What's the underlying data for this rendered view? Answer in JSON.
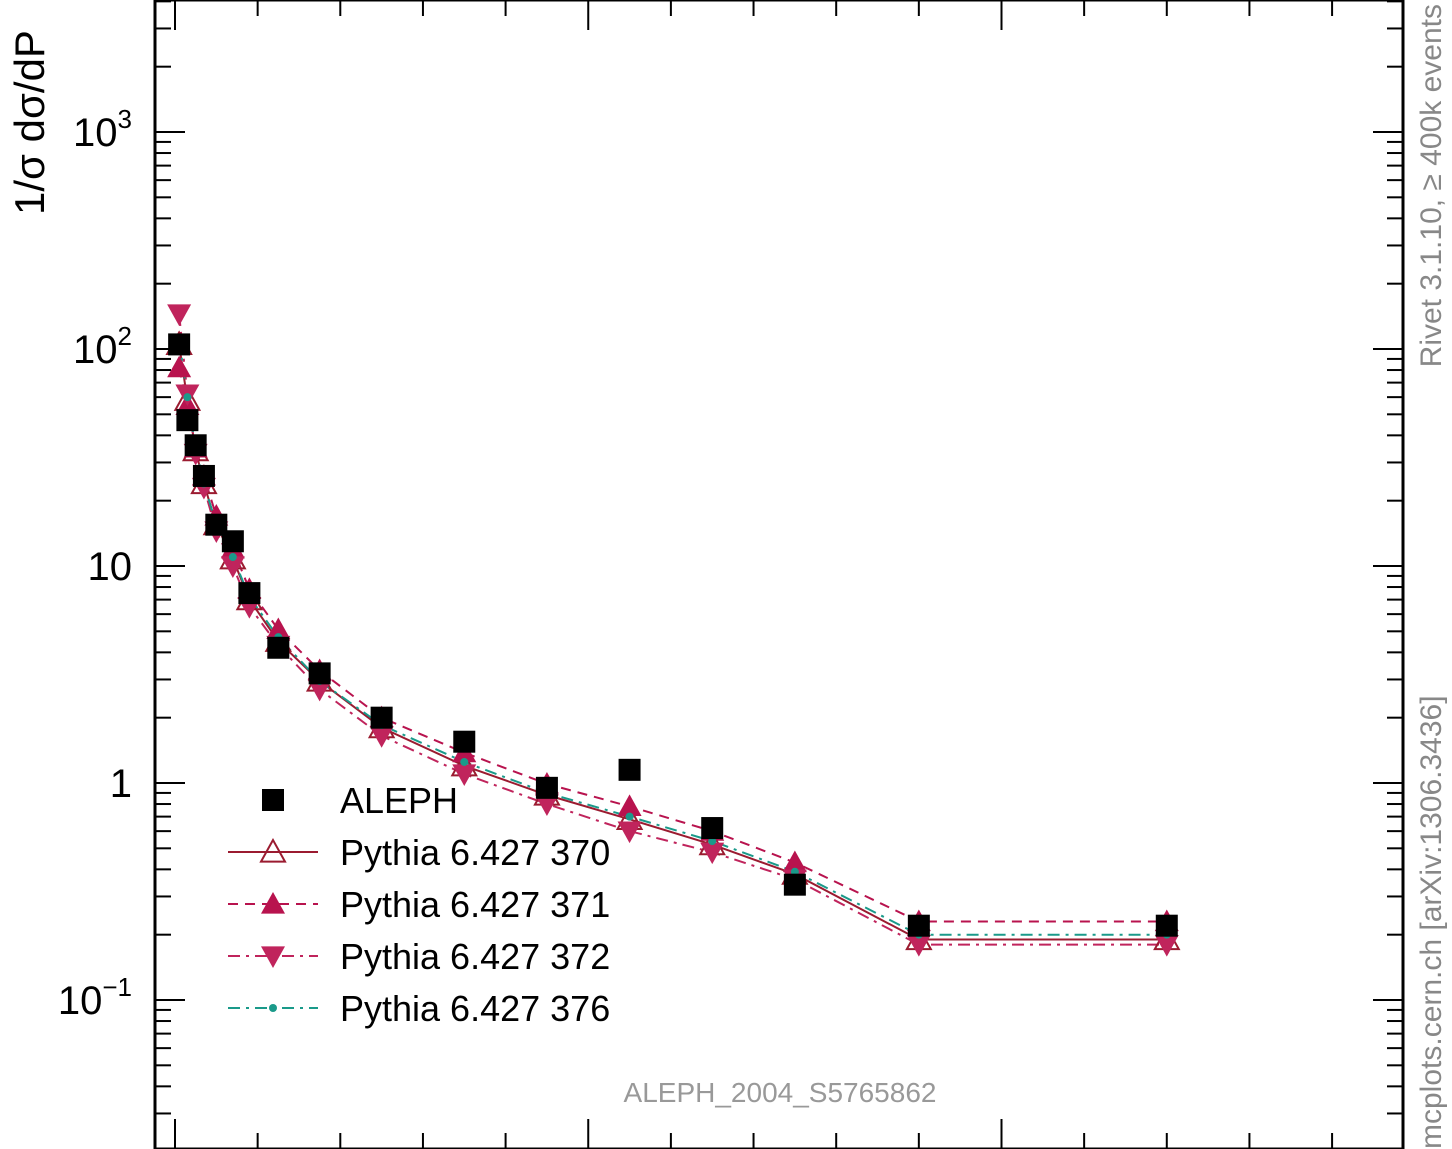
{
  "chart_data": {
    "type": "scatter",
    "title": "",
    "xlabel": "",
    "ylabel": "1/σ  dσ/dP",
    "y_scale": "log",
    "ylim": [
      0.025,
      4000
    ],
    "xlim": [
      0,
      1.51
    ],
    "y_ticks": [
      {
        "value": 1000,
        "base": "10",
        "exp": "3"
      },
      {
        "value": 100,
        "base": "10",
        "exp": "2"
      },
      {
        "value": 10,
        "base": "10",
        "exp": ""
      },
      {
        "value": 1,
        "base": "1",
        "exp": ""
      },
      {
        "value": 0.1,
        "base": "10",
        "exp": "−1"
      }
    ],
    "legend_position": "bottom-left",
    "watermark": "ALEPH_2004_S5765862",
    "side_text_lower": "mcplots.cern.ch [arXiv:1306.3436]",
    "side_text_upper": "Rivet 3.1.10, ≥ 400k events",
    "series": [
      {
        "name": "ALEPH",
        "marker": "square-filled",
        "color": "#000000",
        "line": "none",
        "x": [
          0.005,
          0.015,
          0.025,
          0.035,
          0.05,
          0.07,
          0.09,
          0.125,
          0.175,
          0.25,
          0.35,
          0.45,
          0.55,
          0.65,
          0.75,
          0.9,
          1.2
        ],
        "y": [
          105,
          47,
          36,
          26,
          15.5,
          13,
          7.5,
          4.2,
          3.2,
          2.0,
          1.55,
          0.95,
          1.15,
          0.62,
          0.34,
          0.22,
          0.22
        ]
      },
      {
        "name": "Pythia 6.427 370",
        "marker": "triangle-up-open",
        "color": "#9b1b30",
        "line": "solid",
        "x": [
          0.005,
          0.015,
          0.025,
          0.035,
          0.05,
          0.07,
          0.09,
          0.125,
          0.175,
          0.25,
          0.35,
          0.45,
          0.55,
          0.65,
          0.75,
          0.9,
          1.2
        ],
        "y": [
          105,
          58,
          34,
          24,
          15.5,
          10.8,
          7.0,
          4.5,
          2.95,
          1.8,
          1.2,
          0.88,
          0.68,
          0.52,
          0.38,
          0.19,
          0.19
        ]
      },
      {
        "name": "Pythia 6.427 371",
        "marker": "triangle-up-filled",
        "color": "#b8134e",
        "line": "dashed",
        "x": [
          0.005,
          0.015,
          0.025,
          0.035,
          0.05,
          0.07,
          0.09,
          0.125,
          0.175,
          0.25,
          0.35,
          0.45,
          0.55,
          0.65,
          0.75,
          0.9,
          1.2
        ],
        "y": [
          82,
          55,
          35,
          26,
          17,
          12,
          7.8,
          5.1,
          3.3,
          2.0,
          1.38,
          0.99,
          0.78,
          0.6,
          0.43,
          0.23,
          0.23
        ]
      },
      {
        "name": "Pythia 6.427 372",
        "marker": "triangle-down-filled",
        "color": "#c0245c",
        "line": "dashdot",
        "x": [
          0.005,
          0.015,
          0.025,
          0.035,
          0.05,
          0.07,
          0.09,
          0.125,
          0.175,
          0.25,
          0.35,
          0.45,
          0.55,
          0.65,
          0.75,
          0.9,
          1.2
        ],
        "y": [
          145,
          62,
          33,
          23,
          14.5,
          10,
          6.5,
          4.3,
          2.7,
          1.65,
          1.1,
          0.8,
          0.6,
          0.48,
          0.36,
          0.18,
          0.18
        ]
      },
      {
        "name": "Pythia 6.427 376",
        "marker": "dot",
        "color": "#1a9a8a",
        "line": "dashdot",
        "x": [
          0.005,
          0.015,
          0.025,
          0.035,
          0.05,
          0.07,
          0.09,
          0.125,
          0.175,
          0.25,
          0.35,
          0.45,
          0.55,
          0.65,
          0.75,
          0.9,
          1.2
        ],
        "y": [
          110,
          60,
          35,
          24,
          15.5,
          11,
          7.2,
          4.7,
          2.95,
          1.85,
          1.25,
          0.9,
          0.7,
          0.54,
          0.39,
          0.2,
          0.2
        ]
      }
    ]
  }
}
